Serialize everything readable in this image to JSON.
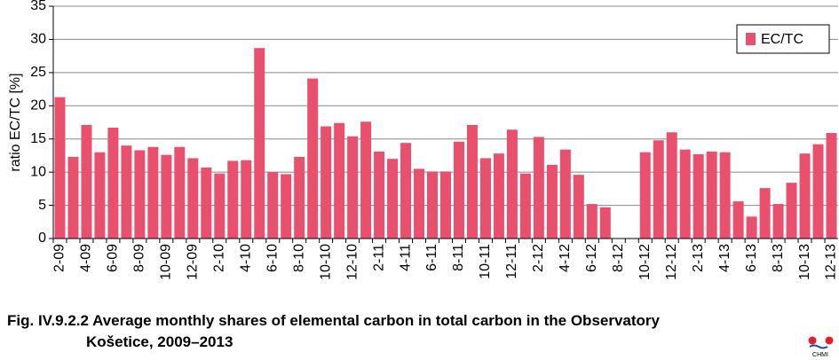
{
  "chart_data": {
    "type": "bar",
    "categories": [
      "2-09",
      null,
      "4-09",
      null,
      "6-09",
      null,
      "8-09",
      null,
      "10-09",
      null,
      "12-09",
      null,
      "2-10",
      null,
      "4-10",
      null,
      "6-10",
      null,
      "8-10",
      null,
      "10-10",
      null,
      "12-10",
      null,
      "2-11",
      null,
      "4-11",
      null,
      "6-11",
      null,
      "8-11",
      null,
      "10-11",
      null,
      "12-11",
      null,
      "2-12",
      null,
      "4-12",
      null,
      "6-12",
      null,
      "8-12",
      null,
      "10-12",
      null,
      "12-12",
      null,
      "2-13",
      null,
      "4-13",
      null,
      "6-13",
      null,
      "8-13",
      null,
      "10-13",
      null,
      "12-13"
    ],
    "series": [
      {
        "name": "EC/TC",
        "color": "#e8506e",
        "values": [
          21.3,
          12.3,
          17.1,
          13.0,
          16.7,
          14.0,
          13.3,
          13.8,
          12.6,
          13.8,
          12.1,
          10.7,
          9.8,
          11.7,
          11.8,
          28.7,
          10.0,
          9.7,
          12.3,
          24.1,
          16.9,
          17.4,
          15.4,
          17.6,
          13.1,
          12.0,
          14.4,
          10.5,
          10.1,
          10.1,
          14.6,
          17.1,
          12.1,
          12.8,
          16.4,
          9.8,
          15.3,
          11.1,
          13.4,
          9.6,
          5.2,
          4.7,
          null,
          null,
          13.0,
          14.8,
          16.0,
          13.4,
          12.7,
          13.1,
          13.0,
          5.6,
          3.3,
          7.6,
          5.2,
          8.4,
          12.8,
          14.2,
          15.9
        ]
      }
    ],
    "y_label": "ratio EC/TC [%]",
    "ylim": [
      0,
      35
    ],
    "yticks": [
      0,
      5,
      10,
      15,
      20,
      25,
      30,
      35
    ],
    "grid": true,
    "legend": "top-right",
    "caption": [
      "Fig. IV.9.2.2  Average monthly shares of elemental carbon in total carbon in the Observatory",
      "Košetice, 2009–2013"
    ],
    "logo_text": "CHMI"
  }
}
